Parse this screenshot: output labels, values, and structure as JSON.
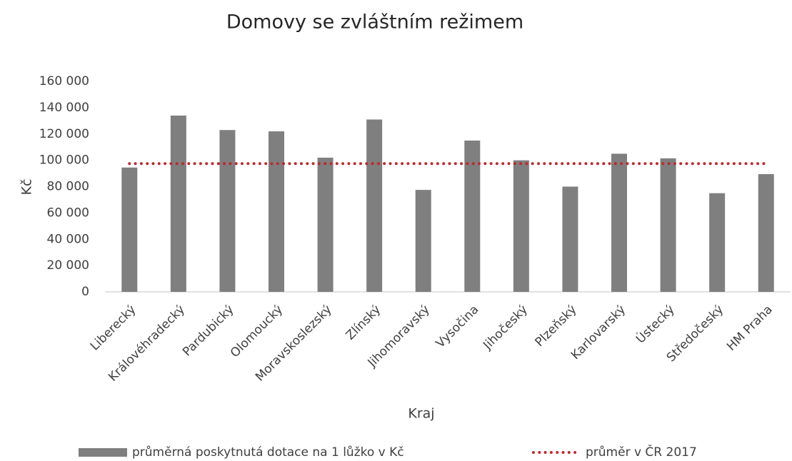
{
  "chart_data": {
    "type": "bar",
    "title": "Domovy se zvláštním režimem",
    "x_label": "Kraj",
    "y_label": "Kč",
    "categories": [
      "Liberecký",
      "Královéhradecký",
      "Pardubický",
      "Olomoucký",
      "Moravskoslezský",
      "Zlínský",
      "Jihomoravský",
      "Vysočina",
      "Jihočeský",
      "Plzeňský",
      "Karlovarský",
      "Ústecký",
      "Středočeský",
      "HM Praha"
    ],
    "series": [
      {
        "name": "průměrná poskytnutá dotace na 1 lůžko v Kč",
        "type": "bar",
        "color": "#7f7f7f",
        "values": [
          94500,
          134000,
          123000,
          122000,
          102000,
          131000,
          77500,
          115000,
          100000,
          80000,
          105000,
          101500,
          75000,
          89500
        ]
      },
      {
        "name": "průměr v ČR 2017",
        "type": "line",
        "color": "#c0272d",
        "values": [
          97500,
          97500,
          97500,
          97500,
          97500,
          97500,
          97500,
          97500,
          97500,
          97500,
          97500,
          97500,
          97500,
          97500
        ]
      }
    ],
    "ylim": [
      0,
      160000
    ],
    "yticks": [
      0,
      {
        "value": 20000,
        "label": "20 000"
      },
      {
        "value": 40000,
        "label": "40 000"
      },
      {
        "value": 60000,
        "label": "60 000"
      },
      {
        "value": 80000,
        "label": "80 000"
      },
      {
        "value": 100000,
        "label": "100 000"
      },
      {
        "value": 120000,
        "label": "120 000"
      },
      {
        "value": 140000,
        "label": "140 000"
      },
      {
        "value": 160000,
        "label": "160 000"
      }
    ],
    "grid": false,
    "legend": "bottom"
  }
}
